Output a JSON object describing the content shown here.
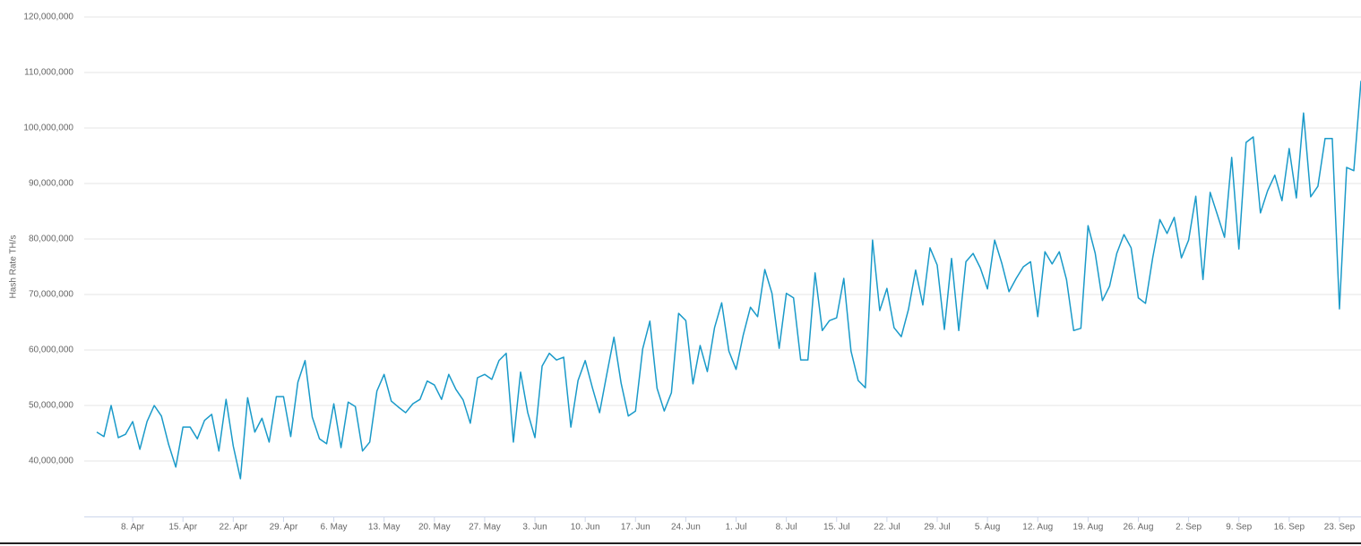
{
  "chart_data": {
    "type": "line",
    "y_axis_title": "Hash Rate TH/s",
    "x": [
      "3. Apr",
      "4. Apr",
      "5. Apr",
      "6. Apr",
      "7. Apr",
      "8. Apr",
      "9. Apr",
      "10. Apr",
      "11. Apr",
      "12. Apr",
      "13. Apr",
      "14. Apr",
      "15. Apr",
      "16. Apr",
      "17. Apr",
      "18. Apr",
      "19. Apr",
      "20. Apr",
      "21. Apr",
      "22. Apr",
      "23. Apr",
      "24. Apr",
      "25. Apr",
      "26. Apr",
      "27. Apr",
      "28. Apr",
      "29. Apr",
      "30. Apr",
      "1. May",
      "2. May",
      "3. May",
      "4. May",
      "5. May",
      "6. May",
      "7. May",
      "8. May",
      "9. May",
      "10. May",
      "11. May",
      "12. May",
      "13. May",
      "14. May",
      "15. May",
      "16. May",
      "17. May",
      "18. May",
      "19. May",
      "20. May",
      "21. May",
      "22. May",
      "23. May",
      "24. May",
      "25. May",
      "26. May",
      "27. May",
      "28. May",
      "29. May",
      "30. May",
      "31. May",
      "1. Jun",
      "2. Jun",
      "3. Jun",
      "4. Jun",
      "5. Jun",
      "6. Jun",
      "7. Jun",
      "8. Jun",
      "9. Jun",
      "10. Jun",
      "11. Jun",
      "12. Jun",
      "13. Jun",
      "14. Jun",
      "15. Jun",
      "16. Jun",
      "17. Jun",
      "18. Jun",
      "19. Jun",
      "20. Jun",
      "21. Jun",
      "22. Jun",
      "23. Jun",
      "24. Jun",
      "25. Jun",
      "26. Jun",
      "27. Jun",
      "28. Jun",
      "29. Jun",
      "30. Jun",
      "1. Jul",
      "2. Jul",
      "3. Jul",
      "4. Jul",
      "5. Jul",
      "6. Jul",
      "7. Jul",
      "8. Jul",
      "9. Jul",
      "10. Jul",
      "11. Jul",
      "12. Jul",
      "13. Jul",
      "14. Jul",
      "15. Jul",
      "16. Jul",
      "17. Jul",
      "18. Jul",
      "19. Jul",
      "20. Jul",
      "21. Jul",
      "22. Jul",
      "23. Jul",
      "24. Jul",
      "25. Jul",
      "26. Jul",
      "27. Jul",
      "28. Jul",
      "29. Jul",
      "30. Jul",
      "31. Jul",
      "1. Aug",
      "2. Aug",
      "3. Aug",
      "4. Aug",
      "5. Aug",
      "6. Aug",
      "7. Aug",
      "8. Aug",
      "9. Aug",
      "10. Aug",
      "11. Aug",
      "12. Aug",
      "13. Aug",
      "14. Aug",
      "15. Aug",
      "16. Aug",
      "17. Aug",
      "18. Aug",
      "19. Aug",
      "20. Aug",
      "21. Aug",
      "22. Aug",
      "23. Aug",
      "24. Aug",
      "25. Aug",
      "26. Aug",
      "27. Aug",
      "28. Aug",
      "29. Aug",
      "30. Aug",
      "31. Aug",
      "1. Sep",
      "2. Sep",
      "3. Sep",
      "4. Sep",
      "5. Sep",
      "6. Sep",
      "7. Sep",
      "8. Sep",
      "9. Sep",
      "10. Sep",
      "11. Sep",
      "12. Sep",
      "13. Sep",
      "14. Sep",
      "15. Sep",
      "16. Sep",
      "17. Sep",
      "18. Sep",
      "19. Sep",
      "20. Sep",
      "21. Sep",
      "22. Sep",
      "23. Sep",
      "24. Sep",
      "25. Sep",
      "26. Sep"
    ],
    "series": [
      {
        "name": "Hash Rate",
        "color": "#1a9ac9",
        "values": [
          45200000,
          44400000,
          50000000,
          44200000,
          44800000,
          47100000,
          42100000,
          47100000,
          50000000,
          48100000,
          43000000,
          38900000,
          46100000,
          46100000,
          44000000,
          47300000,
          48400000,
          41800000,
          51100000,
          42700000,
          36800000,
          51400000,
          45200000,
          47700000,
          43400000,
          51600000,
          51600000,
          44400000,
          54200000,
          58100000,
          47900000,
          44000000,
          43100000,
          50300000,
          42400000,
          50600000,
          49800000,
          41800000,
          43400000,
          52600000,
          55600000,
          50800000,
          49700000,
          48700000,
          50300000,
          51100000,
          54400000,
          53700000,
          51100000,
          55600000,
          52900000,
          51000000,
          46800000,
          55000000,
          55600000,
          54700000,
          58100000,
          59400000,
          43400000,
          56000000,
          48700000,
          44200000,
          57100000,
          59400000,
          58200000,
          58700000,
          46100000,
          54500000,
          58100000,
          53200000,
          48700000,
          55600000,
          62300000,
          54000000,
          48100000,
          49000000,
          60200000,
          65200000,
          53100000,
          49000000,
          52300000,
          66600000,
          65300000,
          53900000,
          60800000,
          56100000,
          64000000,
          68500000,
          59800000,
          56500000,
          62700000,
          67700000,
          66000000,
          74500000,
          70200000,
          60300000,
          70200000,
          69400000,
          58200000,
          58200000,
          73900000,
          63500000,
          65300000,
          65800000,
          72900000,
          59800000,
          54500000,
          53200000,
          79800000,
          67100000,
          71100000,
          64000000,
          62400000,
          67300000,
          74400000,
          68100000,
          78400000,
          75300000,
          63700000,
          76500000,
          63500000,
          75900000,
          77400000,
          74800000,
          71000000,
          79800000,
          75600000,
          70500000,
          72900000,
          75000000,
          75900000,
          66000000,
          77700000,
          75500000,
          77700000,
          72700000,
          63500000,
          63900000,
          82400000,
          77400000,
          68900000,
          71500000,
          77400000,
          80800000,
          78400000,
          69400000,
          68400000,
          76600000,
          83500000,
          81000000,
          83900000,
          76600000,
          79800000,
          87700000,
          72700000,
          88400000,
          84400000,
          80300000,
          94700000,
          78200000,
          97400000,
          98400000,
          84700000,
          88700000,
          91500000,
          86900000,
          96300000,
          87400000,
          102700000,
          87600000,
          89500000,
          98100000,
          98100000,
          67400000,
          92900000,
          92300000,
          108500000
        ]
      }
    ],
    "ylim": [
      30000000,
      120000000
    ],
    "yticks": [
      {
        "value": 40000000,
        "label": "40,000,000"
      },
      {
        "value": 50000000,
        "label": "50,000,000"
      },
      {
        "value": 60000000,
        "label": "60,000,000"
      },
      {
        "value": 70000000,
        "label": "70,000,000"
      },
      {
        "value": 80000000,
        "label": "80,000,000"
      },
      {
        "value": 90000000,
        "label": "90,000,000"
      },
      {
        "value": 100000000,
        "label": "100,000,000"
      },
      {
        "value": 110000000,
        "label": "110,000,000"
      },
      {
        "value": 120000000,
        "label": "120,000,000"
      }
    ],
    "xticks": [
      "8. Apr",
      "15. Apr",
      "22. Apr",
      "29. Apr",
      "6. May",
      "13. May",
      "20. May",
      "27. May",
      "3. Jun",
      "10. Jun",
      "17. Jun",
      "24. Jun",
      "1. Jul",
      "8. Jul",
      "15. Jul",
      "22. Jul",
      "29. Jul",
      "5. Aug",
      "12. Aug",
      "19. Aug",
      "26. Aug",
      "2. Sep",
      "9. Sep",
      "16. Sep",
      "23. Sep"
    ],
    "grid": true
  }
}
